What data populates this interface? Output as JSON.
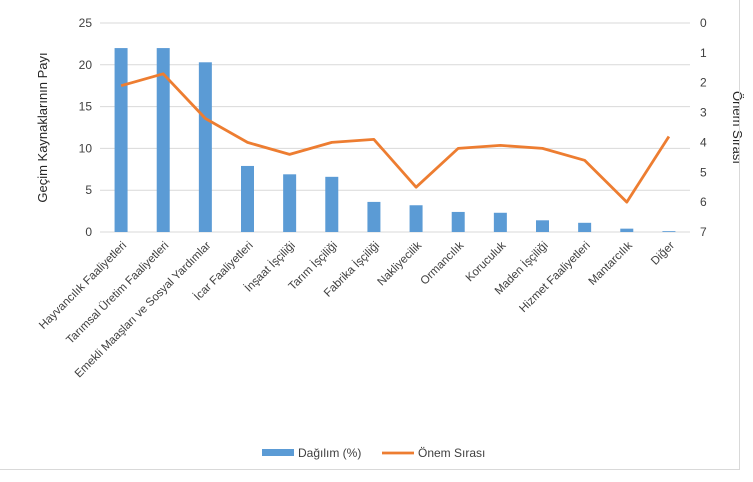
{
  "chart_data": {
    "type": "bar+line",
    "title": "",
    "categories": [
      "Hayvancılık Faaliyetleri",
      "Tarımsal Üretim Faaliyetleri",
      "Emekli Maaşları ve Sosyal Yardımlar",
      "İcar Faaliyetleri",
      "İnşaat İşçiliği",
      "Tarım İşçiliği",
      "Fabrika İşçiliği",
      "Nakliyecilik",
      "Ormancılık",
      "Koruculuk",
      "Maden İşçiliği",
      "Hizmet Faaliyetleri",
      "Mantarcılık",
      "Diğer"
    ],
    "series": [
      {
        "name": "Dağılım (%)",
        "type": "bar",
        "axis": "left",
        "color": "#5b9bd5",
        "values": [
          22,
          22,
          20.3,
          7.9,
          6.9,
          6.6,
          3.6,
          3.2,
          2.4,
          2.3,
          1.4,
          1.1,
          0.4,
          0.1
        ]
      },
      {
        "name": "Önem Sırası",
        "type": "line",
        "axis": "right",
        "color": "#ed7d31",
        "values": [
          2.1,
          1.7,
          3.2,
          4.0,
          4.4,
          4.0,
          3.9,
          5.5,
          4.2,
          4.1,
          4.2,
          4.6,
          6.0,
          3.8
        ]
      }
    ],
    "ylabel_left": "Geçim Kaynaklarının Payı",
    "ylabel_right": "Önem Sırası",
    "ylim_left": [
      0,
      25
    ],
    "yticks_left": [
      "0",
      "5",
      "10",
      "15",
      "20",
      "25"
    ],
    "ylim_right_inverted": [
      0,
      7
    ],
    "yticks_right": [
      "0",
      "1",
      "2",
      "3",
      "4",
      "5",
      "6",
      "7"
    ],
    "grid": true,
    "legend": "bottom"
  }
}
